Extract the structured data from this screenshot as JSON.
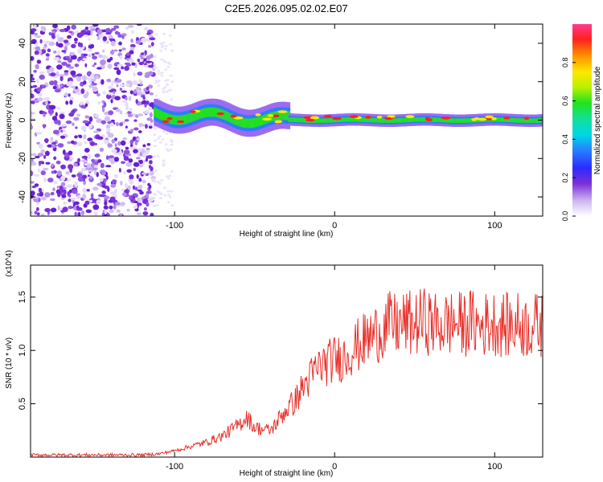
{
  "chart_data": [
    {
      "type": "heatmap",
      "title": "C2E5.2026.095.02.02.E07",
      "xlabel": "Height of straight line (km)",
      "ylabel": "Frequency (Hz)",
      "xlim": [
        -190,
        130
      ],
      "ylim": [
        -50,
        50
      ],
      "xticks": [
        -100,
        0,
        100
      ],
      "yticks": [
        -40,
        -20,
        0,
        20,
        40
      ],
      "colorbar": {
        "label": "Normalized spectral amplitude",
        "range": [
          0,
          1
        ],
        "ticks": [
          0.0,
          0.2,
          0.4,
          0.6,
          0.8
        ]
      },
      "regions": [
        {
          "name": "noise",
          "x_range": [
            -190,
            -113
          ],
          "freq_range": [
            -50,
            50
          ],
          "amplitude": "0.05-0.2"
        },
        {
          "name": "signal band",
          "x_range": [
            -113,
            130
          ],
          "center_freq": [
            3,
            0
          ],
          "amplitude_peak": 0.95
        }
      ]
    },
    {
      "type": "line",
      "xlabel": "Height of straight line (km)",
      "ylabel": "SNR (10 * v/v)",
      "scale_label": "(x10^4)",
      "xlim": [
        -190,
        130
      ],
      "ylim": [
        0,
        18000
      ],
      "xticks": [
        -100,
        0,
        100
      ],
      "yticks": [
        5000,
        10000,
        15000
      ],
      "ytick_labels": [
        "0.5",
        "1.0",
        "1.5"
      ],
      "series": [
        {
          "name": "SNR",
          "color": "#e8302a",
          "x": [
            -190,
            -150,
            -120,
            -110,
            -100,
            -90,
            -80,
            -70,
            -60,
            -55,
            -50,
            -45,
            -40,
            -35,
            -30,
            -25,
            -20,
            -15,
            -10,
            -5,
            0,
            5,
            10,
            15,
            20,
            25,
            30,
            35,
            40,
            45,
            50,
            55,
            60,
            65,
            70,
            75,
            80,
            85,
            90,
            95,
            100,
            105,
            110,
            115,
            120,
            125,
            130
          ],
          "y": [
            200,
            200,
            200,
            300,
            600,
            1000,
            1400,
            2000,
            3000,
            3800,
            2800,
            2600,
            2500,
            3500,
            4500,
            5200,
            6500,
            7500,
            8500,
            8800,
            9200,
            9300,
            10000,
            10500,
            11000,
            11500,
            12000,
            12500,
            12300,
            12600,
            12400,
            12800,
            12600,
            12300,
            12500,
            12600,
            12400,
            12700,
            12200,
            12500,
            12600,
            12400,
            12300,
            12500,
            12200,
            12400,
            12300
          ]
        }
      ]
    }
  ]
}
